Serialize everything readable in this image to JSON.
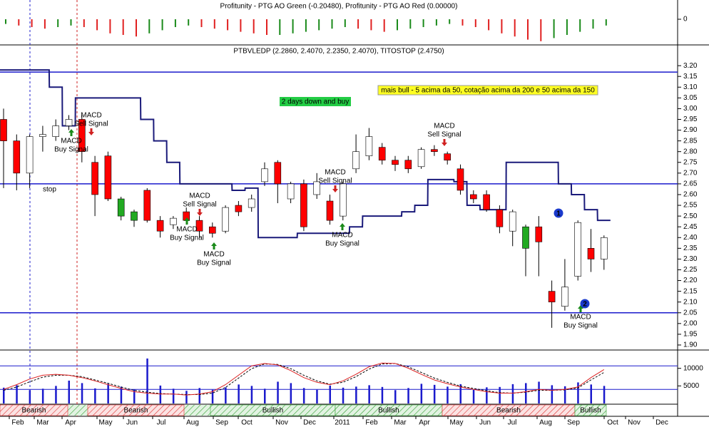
{
  "chart_data": {
    "type": "candlestick",
    "ao_title": "Profitunity - PTG AO Green (-0.20480), Profitunity - PTG AO Red (0.00000)",
    "ao_values": [
      -0.06,
      -0.08,
      -0.1,
      -0.12,
      -0.1,
      -0.08,
      -0.1,
      -0.14,
      -0.18,
      -0.2,
      -0.22,
      -0.18,
      -0.14,
      -0.1,
      -0.08,
      -0.1,
      -0.12,
      -0.14,
      -0.16,
      -0.18,
      -0.2,
      -0.2,
      -0.18,
      -0.16,
      -0.14,
      -0.12,
      -0.1,
      -0.12,
      -0.14,
      -0.16,
      -0.14,
      -0.12,
      -0.1,
      -0.08,
      -0.06,
      -0.08,
      -0.1,
      -0.14,
      -0.18,
      -0.22,
      -0.26,
      -0.28,
      -0.24,
      -0.2,
      -0.16,
      -0.12,
      -0.08
    ],
    "ao_ylim": [
      -0.3,
      0.2
    ],
    "ao_yticks": [
      0
    ],
    "ao_colors": {
      "up": "#1a8a1a",
      "down": "#e02020"
    },
    "title": "PTBVLEDP (2.2860, 2.4070, 2.2350, 2.4070), TITOSTOP (2.4750)",
    "open": [
      2.95,
      2.85,
      2.7,
      2.87,
      2.87,
      2.92,
      2.95,
      2.75,
      2.78,
      2.5,
      2.48,
      2.62,
      2.48,
      2.46,
      2.52,
      2.48,
      2.45,
      2.43,
      2.55,
      2.54,
      2.66,
      2.75,
      2.58,
      2.65,
      2.6,
      2.57,
      2.5,
      2.72,
      2.78,
      2.82,
      2.76,
      2.76,
      2.73,
      2.81,
      2.79,
      2.72,
      2.6,
      2.6,
      2.53,
      2.43,
      2.35,
      2.45,
      2.15,
      2.08,
      2.22,
      2.35,
      2.3
    ],
    "high": [
      3.0,
      2.88,
      2.88,
      2.92,
      2.95,
      2.97,
      2.97,
      2.78,
      2.8,
      2.59,
      2.53,
      2.63,
      2.5,
      2.5,
      2.54,
      2.5,
      2.47,
      2.55,
      2.57,
      2.6,
      2.75,
      2.76,
      2.66,
      2.67,
      2.7,
      2.6,
      2.66,
      2.88,
      2.91,
      2.84,
      2.78,
      2.78,
      2.82,
      2.83,
      2.8,
      2.74,
      2.62,
      2.62,
      2.55,
      2.53,
      2.46,
      2.5,
      2.2,
      2.3,
      2.48,
      2.44,
      2.41
    ],
    "low": [
      2.63,
      2.62,
      2.63,
      2.8,
      2.85,
      2.9,
      2.75,
      2.5,
      2.57,
      2.48,
      2.45,
      2.47,
      2.4,
      2.44,
      2.46,
      2.4,
      2.4,
      2.42,
      2.5,
      2.52,
      2.64,
      2.56,
      2.56,
      2.43,
      2.58,
      2.46,
      2.48,
      2.7,
      2.76,
      2.74,
      2.71,
      2.7,
      2.72,
      2.78,
      2.74,
      2.6,
      2.56,
      2.52,
      2.42,
      2.36,
      2.22,
      2.22,
      1.98,
      2.06,
      2.2,
      2.24,
      2.25
    ],
    "close": [
      2.85,
      2.7,
      2.87,
      2.88,
      2.92,
      2.95,
      2.8,
      2.6,
      2.58,
      2.58,
      2.52,
      2.48,
      2.43,
      2.49,
      2.48,
      2.43,
      2.42,
      2.54,
      2.52,
      2.58,
      2.72,
      2.65,
      2.65,
      2.45,
      2.66,
      2.48,
      2.65,
      2.8,
      2.87,
      2.76,
      2.74,
      2.72,
      2.81,
      2.8,
      2.76,
      2.62,
      2.58,
      2.53,
      2.45,
      2.52,
      2.45,
      2.38,
      2.1,
      2.17,
      2.47,
      2.3,
      2.4
    ],
    "colors": [
      "#ff0000",
      "#ff0000",
      "#ffffff",
      "#ffffff",
      "#ffffff",
      "#ffffff",
      "#ff0000",
      "#ff0000",
      "#ff0000",
      "#22aa22",
      "#22aa22",
      "#ff0000",
      "#ff0000",
      "#ffffff",
      "#ff0000",
      "#ff0000",
      "#ff0000",
      "#ffffff",
      "#ff0000",
      "#ffffff",
      "#ffffff",
      "#ff0000",
      "#ffffff",
      "#ff0000",
      "#ffffff",
      "#ff0000",
      "#ffffff",
      "#ffffff",
      "#ffffff",
      "#ff0000",
      "#ff0000",
      "#ff0000",
      "#ffffff",
      "#ff0000",
      "#ff0000",
      "#ff0000",
      "#ff0000",
      "#ff0000",
      "#ff0000",
      "#ffffff",
      "#22aa22",
      "#ff0000",
      "#ff0000",
      "#ffffff",
      "#ffffff",
      "#ff0000",
      "#ffffff"
    ],
    "stop_values": [
      3.18,
      3.18,
      3.18,
      3.18,
      3.1,
      2.92,
      3.05,
      3.05,
      3.05,
      3.05,
      3.05,
      2.95,
      2.85,
      2.75,
      2.65,
      2.65,
      2.65,
      2.65,
      2.62,
      2.63,
      2.4,
      2.4,
      2.4,
      2.42,
      2.42,
      2.42,
      2.42,
      2.45,
      2.5,
      2.5,
      2.5,
      2.52,
      2.55,
      2.67,
      2.67,
      2.66,
      2.55,
      2.53,
      2.53,
      2.75,
      2.75,
      2.75,
      2.75,
      2.65,
      2.6,
      2.53,
      2.48
    ],
    "stop_color": "#1a1a7a",
    "stop_label": "stop",
    "levels": [
      3.17,
      2.65,
      2.05
    ],
    "level_color": "#1a1acc",
    "ylim": [
      1.88,
      3.29
    ],
    "yticks": [
      {
        "value": 3.2,
        "label": "3.20"
      },
      3.15,
      {
        "value": 3.1,
        "label": "3.10"
      },
      3.05,
      {
        "value": 3,
        "label": "3.00"
      },
      2.95,
      {
        "value": 2.9,
        "label": "2.90"
      },
      2.85,
      {
        "value": 2.8,
        "label": "2.80"
      },
      2.75,
      {
        "value": 2.7,
        "label": "2.70"
      },
      2.65,
      {
        "value": 2.6,
        "label": "2.60"
      },
      2.55,
      {
        "value": 2.5,
        "label": "2.50"
      },
      2.45,
      {
        "value": 2.4,
        "label": "2.40"
      },
      2.35,
      {
        "value": 2.3,
        "label": "2.30"
      },
      2.25,
      {
        "value": 2.2,
        "label": "2.20"
      },
      2.15,
      {
        "value": 2.1,
        "label": "2.10"
      },
      2.05,
      {
        "value": 2,
        "label": "2.00"
      },
      1.95,
      {
        "value": 1.9,
        "label": "1.90"
      }
    ],
    "signals": [
      {
        "title": "MACD",
        "label": "Buy Signal",
        "dir": "buy"
      },
      {
        "title": "MACD",
        "label": "Sell Signal",
        "dir": "sell"
      },
      {
        "title": "MACD",
        "label": "Buy Signal",
        "dir": "buy"
      },
      {
        "title": "MACD",
        "label": "Sell Signal",
        "dir": "sell"
      },
      {
        "title": "MACD",
        "label": "Buy Signal",
        "dir": "buy"
      },
      {
        "title": "MACD",
        "label": "Sell Signal",
        "dir": "sell"
      },
      {
        "title": "MACD",
        "label": "Buy Signal",
        "dir": "buy"
      },
      {
        "title": "MACD",
        "label": "Sell Signal",
        "dir": "sell"
      },
      {
        "title": "MACD",
        "label": "Buy Signal",
        "dir": "buy"
      }
    ],
    "note_green": "2 days down and buy",
    "note_yellow": "mais bull - 5 acima da 50, cotação acima da 200 e 50 acima da 150",
    "markers": [
      "1",
      "2"
    ],
    "volume": [
      4500,
      5200,
      3800,
      4200,
      5000,
      6500,
      5800,
      4300,
      5600,
      4800,
      4000,
      12800,
      5100,
      4200,
      3600,
      4400,
      3900,
      4600,
      5400,
      5000,
      4200,
      6200,
      5800,
      4400,
      3900,
      5100,
      4500,
      4800,
      5200,
      4700,
      3800,
      4400,
      5600,
      5300,
      4800,
      5500,
      3900,
      4600,
      4700,
      5500,
      5800,
      6200,
      5200,
      4900,
      6000,
      5400,
      5000
    ],
    "volume_color": "#1a1acc",
    "volume_ylim": [
      0,
      14000
    ],
    "volume_yticks": [
      10000,
      5000
    ],
    "oscillator": [
      30,
      40,
      52,
      60,
      62,
      60,
      55,
      48,
      40,
      32,
      25,
      22,
      20,
      20,
      18,
      20,
      25,
      40,
      60,
      80,
      85,
      82,
      70,
      55,
      45,
      40,
      48,
      62,
      78,
      86,
      85,
      75,
      62,
      50,
      42,
      35,
      30,
      25,
      22,
      22,
      25,
      30,
      28,
      30,
      35,
      55,
      72
    ],
    "oscillator_signal": [
      28,
      35,
      46,
      56,
      60,
      60,
      57,
      50,
      43,
      35,
      28,
      24,
      21,
      20,
      19,
      19,
      22,
      34,
      54,
      74,
      84,
      83,
      74,
      60,
      48,
      41,
      45,
      57,
      73,
      84,
      85,
      78,
      66,
      54,
      45,
      37,
      32,
      27,
      23,
      22,
      24,
      28,
      28,
      29,
      33,
      50,
      66
    ],
    "oscillator_ylim": [
      0,
      100
    ],
    "oscillator_levels": [
      80,
      30
    ],
    "regimes": [
      {
        "label": "Bearish",
        "color": "#e03030"
      },
      {
        "label": "Bearish",
        "color": "#e03030"
      },
      {
        "label": "Bullish",
        "color": "#30a030"
      },
      {
        "label": "Bullish",
        "color": "#30a030"
      },
      {
        "label": "Bearish",
        "color": "#e03030"
      },
      {
        "label": "Bullish",
        "color": "#30a030"
      }
    ],
    "months": [
      "Feb",
      "Mar",
      "Apr",
      "May",
      "Jun",
      "Jul",
      "Aug",
      "Sep",
      "Oct",
      "Nov",
      "Dec",
      "2011",
      "Feb",
      "Mar",
      "Apr",
      "May",
      "Jun",
      "Jul",
      "Aug",
      "Sep",
      "Oct",
      "Nov",
      "Dec"
    ]
  }
}
